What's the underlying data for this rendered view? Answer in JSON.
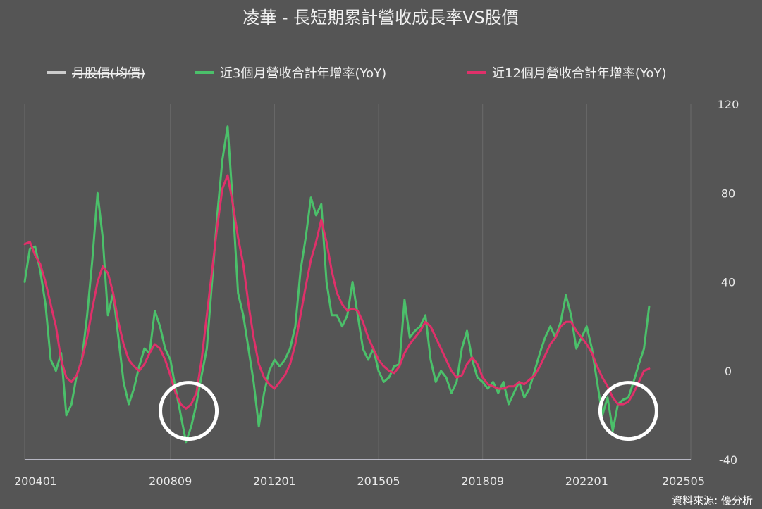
{
  "chart_data": {
    "type": "line",
    "title": "凌華 - 長短期累計營收成長率VS股價",
    "source": "資料來源: 優分析",
    "legend_position": "top",
    "grid": "vertical",
    "x_ticks": [
      "200401",
      "200809",
      "201201",
      "201505",
      "201809",
      "202201",
      "202505"
    ],
    "y_ticks": [
      120,
      80,
      40,
      0,
      -40
    ],
    "ylim": [
      -40,
      120
    ],
    "xlim": [
      "2004-01",
      "2025-05"
    ],
    "series": [
      {
        "name": "月股價(均價)",
        "color": "#cccccc",
        "hidden": true,
        "points": []
      },
      {
        "name": "近3個月營收合計年增率(YoY)",
        "color": "#4bc06a",
        "points": [
          [
            "2004-01",
            40
          ],
          [
            "2004-03",
            55
          ],
          [
            "2004-05",
            56
          ],
          [
            "2004-07",
            45
          ],
          [
            "2004-09",
            30
          ],
          [
            "2004-11",
            5
          ],
          [
            "2005-01",
            0
          ],
          [
            "2005-03",
            8
          ],
          [
            "2005-05",
            -20
          ],
          [
            "2005-07",
            -15
          ],
          [
            "2005-09",
            -2
          ],
          [
            "2005-11",
            5
          ],
          [
            "2006-01",
            25
          ],
          [
            "2006-03",
            50
          ],
          [
            "2006-05",
            80
          ],
          [
            "2006-07",
            60
          ],
          [
            "2006-09",
            25
          ],
          [
            "2006-11",
            35
          ],
          [
            "2007-01",
            15
          ],
          [
            "2007-03",
            -5
          ],
          [
            "2007-05",
            -15
          ],
          [
            "2007-07",
            -8
          ],
          [
            "2007-09",
            2
          ],
          [
            "2007-11",
            10
          ],
          [
            "2008-01",
            8
          ],
          [
            "2008-03",
            27
          ],
          [
            "2008-05",
            20
          ],
          [
            "2008-07",
            10
          ],
          [
            "2008-09",
            5
          ],
          [
            "2008-11",
            -8
          ],
          [
            "2009-01",
            -20
          ],
          [
            "2009-03",
            -32
          ],
          [
            "2009-05",
            -25
          ],
          [
            "2009-07",
            -15
          ],
          [
            "2009-09",
            -2
          ],
          [
            "2009-11",
            10
          ],
          [
            "2010-01",
            40
          ],
          [
            "2010-03",
            70
          ],
          [
            "2010-05",
            95
          ],
          [
            "2010-07",
            110
          ],
          [
            "2010-09",
            75
          ],
          [
            "2010-11",
            35
          ],
          [
            "2011-01",
            25
          ],
          [
            "2011-03",
            10
          ],
          [
            "2011-05",
            -5
          ],
          [
            "2011-07",
            -25
          ],
          [
            "2011-09",
            -10
          ],
          [
            "2011-11",
            0
          ],
          [
            "2012-01",
            5
          ],
          [
            "2012-03",
            2
          ],
          [
            "2012-05",
            5
          ],
          [
            "2012-07",
            10
          ],
          [
            "2012-09",
            20
          ],
          [
            "2012-11",
            45
          ],
          [
            "2013-01",
            60
          ],
          [
            "2013-03",
            78
          ],
          [
            "2013-05",
            70
          ],
          [
            "2013-07",
            75
          ],
          [
            "2013-09",
            40
          ],
          [
            "2013-11",
            25
          ],
          [
            "2014-01",
            25
          ],
          [
            "2014-03",
            20
          ],
          [
            "2014-05",
            25
          ],
          [
            "2014-07",
            40
          ],
          [
            "2014-09",
            25
          ],
          [
            "2014-11",
            10
          ],
          [
            "2015-01",
            5
          ],
          [
            "2015-03",
            10
          ],
          [
            "2015-05",
            0
          ],
          [
            "2015-07",
            -5
          ],
          [
            "2015-09",
            -3
          ],
          [
            "2015-11",
            2
          ],
          [
            "2016-01",
            3
          ],
          [
            "2016-03",
            32
          ],
          [
            "2016-05",
            15
          ],
          [
            "2016-07",
            18
          ],
          [
            "2016-09",
            20
          ],
          [
            "2016-11",
            25
          ],
          [
            "2017-01",
            5
          ],
          [
            "2017-03",
            -5
          ],
          [
            "2017-05",
            0
          ],
          [
            "2017-07",
            -3
          ],
          [
            "2017-09",
            -10
          ],
          [
            "2017-11",
            -5
          ],
          [
            "2018-01",
            10
          ],
          [
            "2018-03",
            18
          ],
          [
            "2018-05",
            5
          ],
          [
            "2018-07",
            -3
          ],
          [
            "2018-09",
            -5
          ],
          [
            "2018-11",
            -8
          ],
          [
            "2019-01",
            -5
          ],
          [
            "2019-03",
            -10
          ],
          [
            "2019-05",
            -5
          ],
          [
            "2019-07",
            -15
          ],
          [
            "2019-09",
            -10
          ],
          [
            "2019-11",
            -5
          ],
          [
            "2020-01",
            -12
          ],
          [
            "2020-03",
            -8
          ],
          [
            "2020-05",
            0
          ],
          [
            "2020-07",
            8
          ],
          [
            "2020-09",
            15
          ],
          [
            "2020-11",
            20
          ],
          [
            "2021-01",
            15
          ],
          [
            "2021-03",
            22
          ],
          [
            "2021-05",
            34
          ],
          [
            "2021-07",
            25
          ],
          [
            "2021-09",
            10
          ],
          [
            "2021-11",
            15
          ],
          [
            "2022-01",
            20
          ],
          [
            "2022-03",
            10
          ],
          [
            "2022-05",
            -5
          ],
          [
            "2022-07",
            -20
          ],
          [
            "2022-09",
            -12
          ],
          [
            "2022-11",
            -27
          ],
          [
            "2023-01",
            -15
          ],
          [
            "2023-03",
            -13
          ],
          [
            "2023-05",
            -12
          ],
          [
            "2023-07",
            -5
          ],
          [
            "2023-09",
            3
          ],
          [
            "2023-11",
            10
          ],
          [
            "2024-01",
            29
          ]
        ]
      },
      {
        "name": "近12個月營收合計年增率(YoY)",
        "color": "#e0306a",
        "points": [
          [
            "2004-01",
            57
          ],
          [
            "2004-03",
            58
          ],
          [
            "2004-05",
            52
          ],
          [
            "2004-07",
            48
          ],
          [
            "2004-09",
            40
          ],
          [
            "2004-11",
            30
          ],
          [
            "2005-01",
            20
          ],
          [
            "2005-03",
            5
          ],
          [
            "2005-05",
            -3
          ],
          [
            "2005-07",
            -5
          ],
          [
            "2005-09",
            -2
          ],
          [
            "2005-11",
            5
          ],
          [
            "2006-01",
            15
          ],
          [
            "2006-03",
            28
          ],
          [
            "2006-05",
            40
          ],
          [
            "2006-07",
            47
          ],
          [
            "2006-09",
            44
          ],
          [
            "2006-11",
            35
          ],
          [
            "2007-01",
            22
          ],
          [
            "2007-03",
            12
          ],
          [
            "2007-05",
            5
          ],
          [
            "2007-07",
            2
          ],
          [
            "2007-09",
            0
          ],
          [
            "2007-11",
            3
          ],
          [
            "2008-01",
            8
          ],
          [
            "2008-03",
            12
          ],
          [
            "2008-05",
            10
          ],
          [
            "2008-07",
            5
          ],
          [
            "2008-09",
            -2
          ],
          [
            "2008-11",
            -10
          ],
          [
            "2009-01",
            -15
          ],
          [
            "2009-03",
            -17
          ],
          [
            "2009-05",
            -15
          ],
          [
            "2009-07",
            -10
          ],
          [
            "2009-09",
            5
          ],
          [
            "2009-11",
            25
          ],
          [
            "2010-01",
            45
          ],
          [
            "2010-03",
            65
          ],
          [
            "2010-05",
            82
          ],
          [
            "2010-07",
            88
          ],
          [
            "2010-09",
            75
          ],
          [
            "2010-11",
            60
          ],
          [
            "2011-01",
            48
          ],
          [
            "2011-03",
            30
          ],
          [
            "2011-05",
            15
          ],
          [
            "2011-07",
            3
          ],
          [
            "2011-09",
            -3
          ],
          [
            "2011-11",
            -6
          ],
          [
            "2012-01",
            -8
          ],
          [
            "2012-03",
            -5
          ],
          [
            "2012-05",
            -2
          ],
          [
            "2012-07",
            3
          ],
          [
            "2012-09",
            12
          ],
          [
            "2012-11",
            25
          ],
          [
            "2013-01",
            38
          ],
          [
            "2013-03",
            50
          ],
          [
            "2013-05",
            58
          ],
          [
            "2013-07",
            68
          ],
          [
            "2013-09",
            58
          ],
          [
            "2013-11",
            45
          ],
          [
            "2014-01",
            35
          ],
          [
            "2014-03",
            30
          ],
          [
            "2014-05",
            27
          ],
          [
            "2014-07",
            28
          ],
          [
            "2014-09",
            27
          ],
          [
            "2014-11",
            22
          ],
          [
            "2015-01",
            15
          ],
          [
            "2015-03",
            10
          ],
          [
            "2015-05",
            5
          ],
          [
            "2015-07",
            2
          ],
          [
            "2015-09",
            0
          ],
          [
            "2015-11",
            -1
          ],
          [
            "2016-01",
            2
          ],
          [
            "2016-03",
            8
          ],
          [
            "2016-05",
            12
          ],
          [
            "2016-07",
            15
          ],
          [
            "2016-09",
            18
          ],
          [
            "2016-11",
            22
          ],
          [
            "2017-01",
            20
          ],
          [
            "2017-03",
            15
          ],
          [
            "2017-05",
            10
          ],
          [
            "2017-07",
            5
          ],
          [
            "2017-09",
            0
          ],
          [
            "2017-11",
            -3
          ],
          [
            "2018-01",
            -2
          ],
          [
            "2018-03",
            3
          ],
          [
            "2018-05",
            6
          ],
          [
            "2018-07",
            3
          ],
          [
            "2018-09",
            -3
          ],
          [
            "2018-11",
            -6
          ],
          [
            "2019-01",
            -7
          ],
          [
            "2019-03",
            -8
          ],
          [
            "2019-05",
            -8
          ],
          [
            "2019-07",
            -7
          ],
          [
            "2019-09",
            -7
          ],
          [
            "2019-11",
            -5
          ],
          [
            "2020-01",
            -6
          ],
          [
            "2020-03",
            -4
          ],
          [
            "2020-05",
            -2
          ],
          [
            "2020-07",
            2
          ],
          [
            "2020-09",
            7
          ],
          [
            "2020-11",
            12
          ],
          [
            "2021-01",
            15
          ],
          [
            "2021-03",
            20
          ],
          [
            "2021-05",
            22
          ],
          [
            "2021-07",
            22
          ],
          [
            "2021-09",
            18
          ],
          [
            "2021-11",
            15
          ],
          [
            "2022-01",
            12
          ],
          [
            "2022-03",
            8
          ],
          [
            "2022-05",
            2
          ],
          [
            "2022-07",
            -3
          ],
          [
            "2022-09",
            -7
          ],
          [
            "2022-11",
            -12
          ],
          [
            "2023-01",
            -15
          ],
          [
            "2023-03",
            -15
          ],
          [
            "2023-05",
            -14
          ],
          [
            "2023-07",
            -10
          ],
          [
            "2023-09",
            -5
          ],
          [
            "2023-11",
            0
          ],
          [
            "2024-01",
            1
          ]
        ]
      }
    ],
    "highlights": [
      {
        "center": [
          "2009-04",
          -18
        ],
        "note": "circle"
      },
      {
        "center": [
          "2023-05",
          -18
        ],
        "note": "circle"
      }
    ]
  }
}
